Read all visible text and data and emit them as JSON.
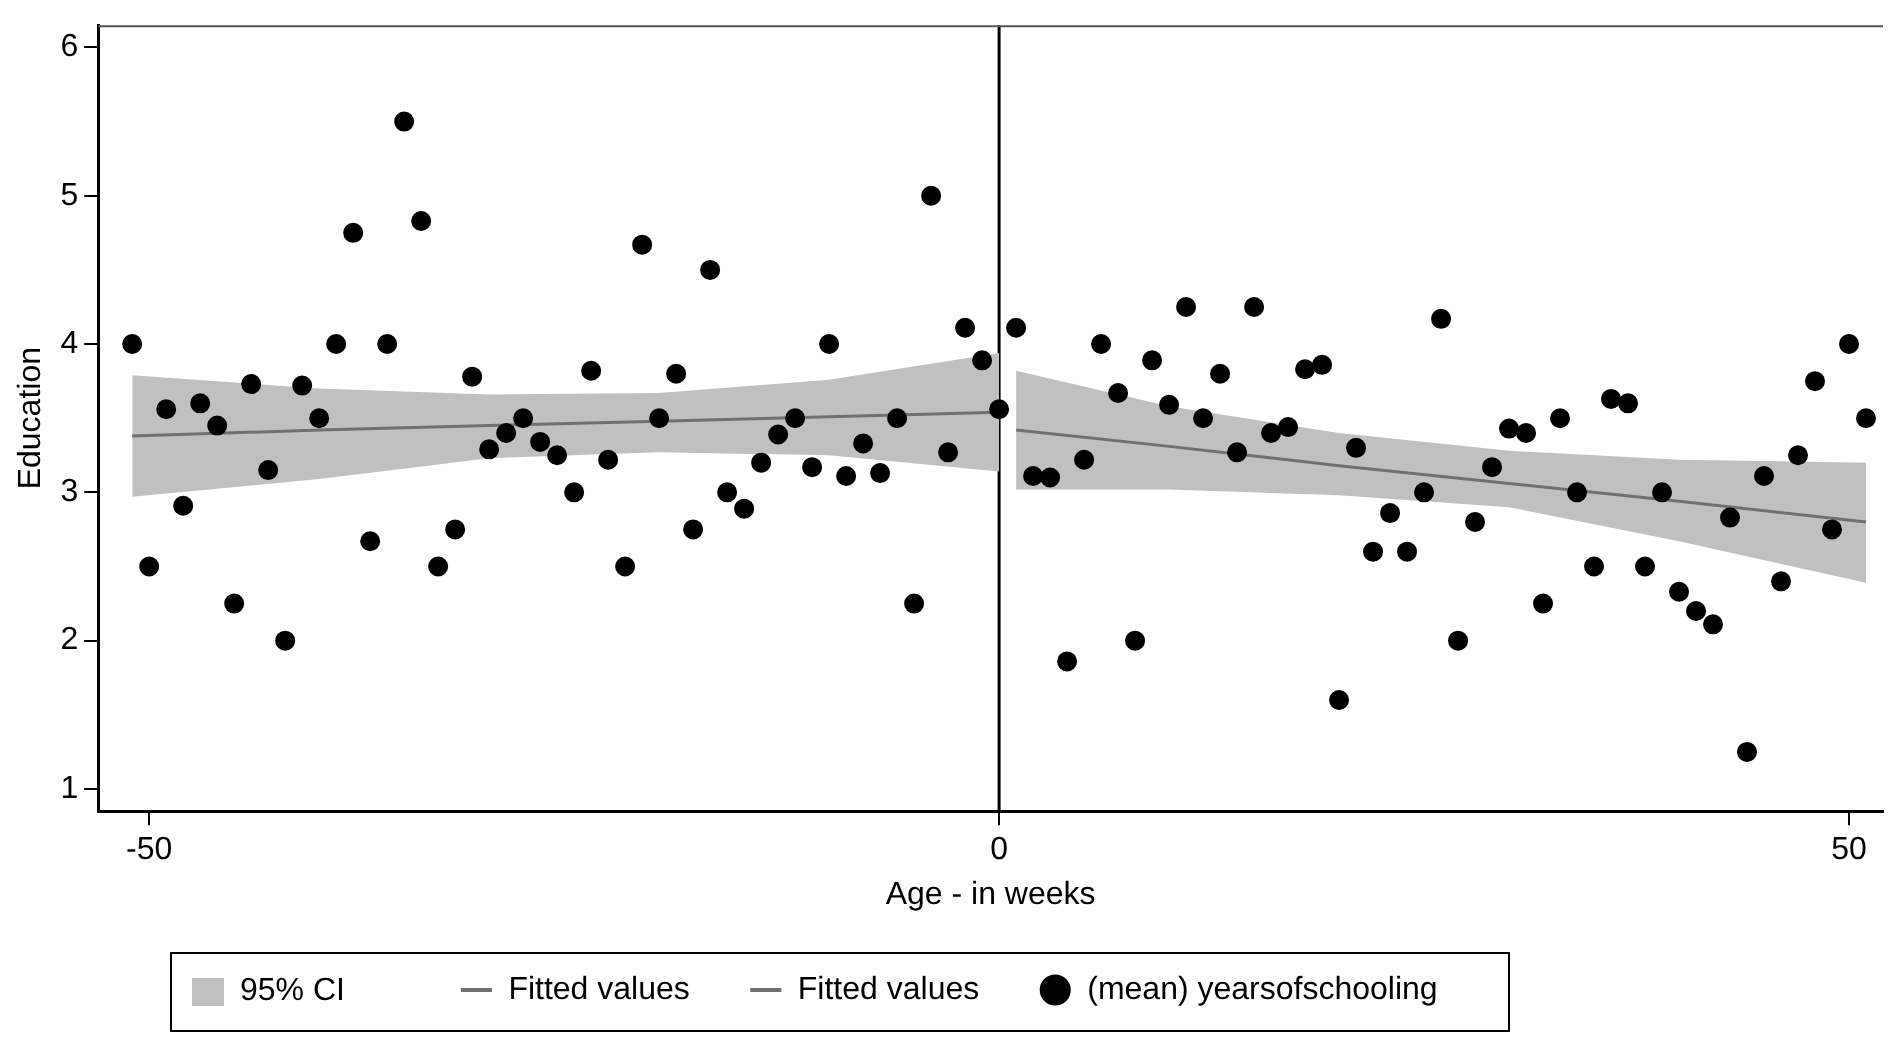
{
  "chart_data": {
    "type": "scatter",
    "xlabel": "Age - in weeks",
    "ylabel": "Education",
    "xlim": [
      -53,
      52
    ],
    "ylim": [
      0.85,
      6.15
    ],
    "xticks": [
      -50,
      0,
      50
    ],
    "yticks": [
      1,
      2,
      3,
      4,
      5,
      6
    ],
    "grid": false,
    "legend": "bottom",
    "marker": "circle",
    "annotations": [
      "95% CI"
    ],
    "ref_lines": [
      {
        "axis": "x",
        "value": 0,
        "color": "#000000"
      }
    ],
    "series": [
      {
        "name": "Fitted values",
        "type": "line",
        "marker": "none",
        "color": "#707070",
        "x": [
          -51,
          -40,
          -30,
          -20,
          -10,
          0
        ],
        "values": [
          3.38,
          3.42,
          3.45,
          3.48,
          3.51,
          3.54
        ],
        "lower": [
          2.97,
          3.09,
          3.23,
          3.27,
          3.25,
          3.14
        ],
        "upper": [
          3.79,
          3.7,
          3.66,
          3.67,
          3.76,
          3.94
        ]
      },
      {
        "name": "Fitted values",
        "type": "line",
        "marker": "none",
        "color": "#707070",
        "x": [
          1,
          10,
          20,
          30,
          40,
          51
        ],
        "values": [
          3.42,
          3.31,
          3.18,
          3.06,
          2.94,
          2.8
        ],
        "lower": [
          3.02,
          3.02,
          2.98,
          2.9,
          2.67,
          2.39
        ],
        "upper": [
          3.82,
          3.58,
          3.4,
          3.28,
          3.22,
          3.2
        ]
      },
      {
        "name": "(mean) yearsofschooling",
        "color": "#000000",
        "x": [
          -51,
          -50,
          -49,
          -48,
          -47,
          -46,
          -45,
          -44,
          -43,
          -42,
          -41,
          -40,
          -39,
          -38,
          -37,
          -36,
          -35,
          -34,
          -33,
          -32,
          -31,
          -30,
          -29,
          -28,
          -27,
          -26,
          -25,
          -24,
          -23,
          -22,
          -21,
          -20,
          -19,
          -18,
          -17,
          -16,
          -15,
          -14,
          -13,
          -12,
          -11,
          -10,
          -9,
          -8,
          -7,
          -6,
          -5,
          -4,
          -3,
          -2,
          -1,
          0,
          1,
          2,
          3,
          4,
          5,
          6,
          7,
          8,
          9,
          10,
          11,
          12,
          13,
          14,
          15,
          16,
          17,
          18,
          19,
          20,
          21,
          22,
          23,
          24,
          25,
          26,
          27,
          28,
          29,
          30,
          31,
          32,
          33,
          34,
          35,
          36,
          37,
          38,
          39,
          40,
          41,
          42,
          43,
          44,
          45,
          46,
          47,
          48,
          49,
          50,
          51
        ],
        "values": [
          4.0,
          2.5,
          3.56,
          2.91,
          3.6,
          3.45,
          2.25,
          3.73,
          3.15,
          2.0,
          3.72,
          3.5,
          4.0,
          4.75,
          2.67,
          4.0,
          5.5,
          4.83,
          2.5,
          2.75,
          3.78,
          3.29,
          3.4,
          3.5,
          3.34,
          3.25,
          3.0,
          3.82,
          3.22,
          2.5,
          4.67,
          3.5,
          3.8,
          2.75,
          4.5,
          3.0,
          2.89,
          3.2,
          3.39,
          3.5,
          3.17,
          4.0,
          3.11,
          3.33,
          3.13,
          3.5,
          2.25,
          5.0,
          3.27,
          4.11,
          3.89,
          3.56,
          4.11,
          3.11,
          3.1,
          1.86,
          3.22,
          4.0,
          3.67,
          2.0,
          3.89,
          3.59,
          4.25,
          3.5,
          3.8,
          3.27,
          4.25,
          3.4,
          3.44,
          3.83,
          3.86,
          1.6,
          3.3,
          2.6,
          2.86,
          2.6,
          3.0,
          4.17,
          2.0,
          2.8,
          3.17,
          3.43,
          3.4,
          2.25,
          3.5,
          3.0,
          2.5,
          3.63,
          3.6,
          2.5,
          3.0,
          2.33,
          2.2,
          2.11,
          2.83,
          1.25,
          3.11,
          2.4,
          3.25,
          3.75,
          2.75,
          4.0,
          3.5
        ]
      }
    ]
  }
}
